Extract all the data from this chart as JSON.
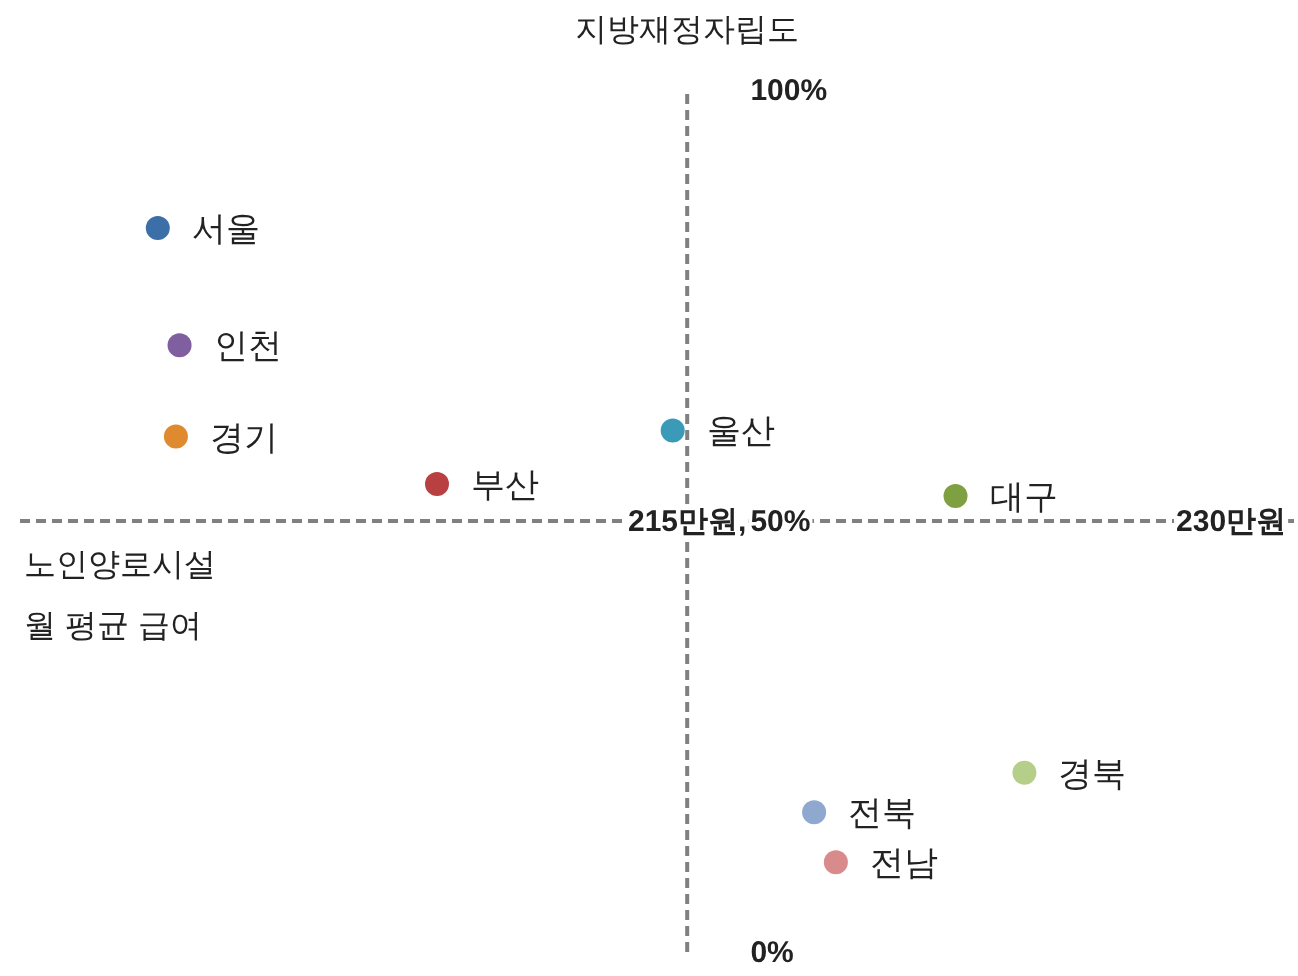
{
  "chart_data": {
    "type": "scatter",
    "xlabel": "노인양로시설\n월 평균 급여",
    "ylabel": "지방재정자립도",
    "xlim": [
      196.6,
      231.9
    ],
    "ylim": [
      0,
      100
    ],
    "xticks": [
      {
        "value": 215,
        "label": "215만원,"
      },
      {
        "value": 230,
        "label": "230만원"
      }
    ],
    "yticks": [
      {
        "value": 0,
        "label": "0%"
      },
      {
        "value": 50,
        "label": "50%"
      },
      {
        "value": 100,
        "label": "100%"
      }
    ],
    "marker": "circle",
    "series": [
      {
        "name": "서울",
        "color": "#3c6ea8",
        "x": [
          200.4
        ],
        "values": [
          84
        ]
      },
      {
        "name": "인천",
        "color": "#7f5fa0",
        "x": [
          201.0
        ],
        "values": [
          70.4
        ]
      },
      {
        "name": "경기",
        "color": "#e08a30",
        "x": [
          200.9
        ],
        "values": [
          59.8
        ]
      },
      {
        "name": "부산",
        "color": "#b94040",
        "x": [
          208.1
        ],
        "values": [
          54.3
        ]
      },
      {
        "name": "울산",
        "color": "#3a9ab8",
        "x": [
          214.6
        ],
        "values": [
          60.5
        ]
      },
      {
        "name": "대구",
        "color": "#7ea040",
        "x": [
          222.4
        ],
        "values": [
          52.9
        ]
      },
      {
        "name": "경북",
        "color": "#b5cf8a",
        "x": [
          224.3
        ],
        "values": [
          20.8
        ]
      },
      {
        "name": "전북",
        "color": "#8fa8d0",
        "x": [
          218.5
        ],
        "values": [
          16.2
        ]
      },
      {
        "name": "전남",
        "color": "#d98a8a",
        "x": [
          219.1
        ],
        "values": [
          10.4
        ]
      }
    ]
  }
}
